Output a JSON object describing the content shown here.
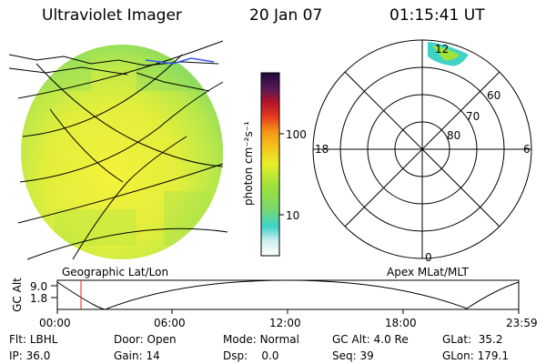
{
  "header": {
    "title": "Ultraviolet Imager",
    "date": "20 Jan 07",
    "time": "01:15:41 UT"
  },
  "colorbar": {
    "label": "photon cm⁻²s⁻¹",
    "ticks": [
      "100",
      "10"
    ]
  },
  "left_panel": {
    "caption": "Geographic Lat/Lon"
  },
  "polar": {
    "caption": "Apex MLat/MLT",
    "mlt_labels": {
      "top": "12",
      "left": "18",
      "right": "6",
      "bottom": "0"
    },
    "lat_labels": [
      "60",
      "70",
      "80"
    ]
  },
  "altitude_plot": {
    "ylabel": "GC Alt",
    "yticks": [
      "9.0",
      "1.8"
    ],
    "xticks": [
      "00:00",
      "06:00",
      "12:00",
      "18:00",
      "23:59"
    ],
    "marker_time": "01:15"
  },
  "info": {
    "row1": [
      {
        "label": "Flt:",
        "value": "LBHL"
      },
      {
        "label": "Door:",
        "value": "Open"
      },
      {
        "label": "Mode:",
        "value": "Normal"
      },
      {
        "label": "GC Alt:",
        "value": "4.0 Re"
      },
      {
        "label": "GLat:",
        "value": "35.2"
      }
    ],
    "row2": [
      {
        "label": "IP:",
        "value": "36.0"
      },
      {
        "label": "Gain:",
        "value": "14"
      },
      {
        "label": "Dsp:",
        "value": "0.0"
      },
      {
        "label": "Seq:",
        "value": "39"
      },
      {
        "label": "GLon:",
        "value": "179.1"
      }
    ]
  }
}
